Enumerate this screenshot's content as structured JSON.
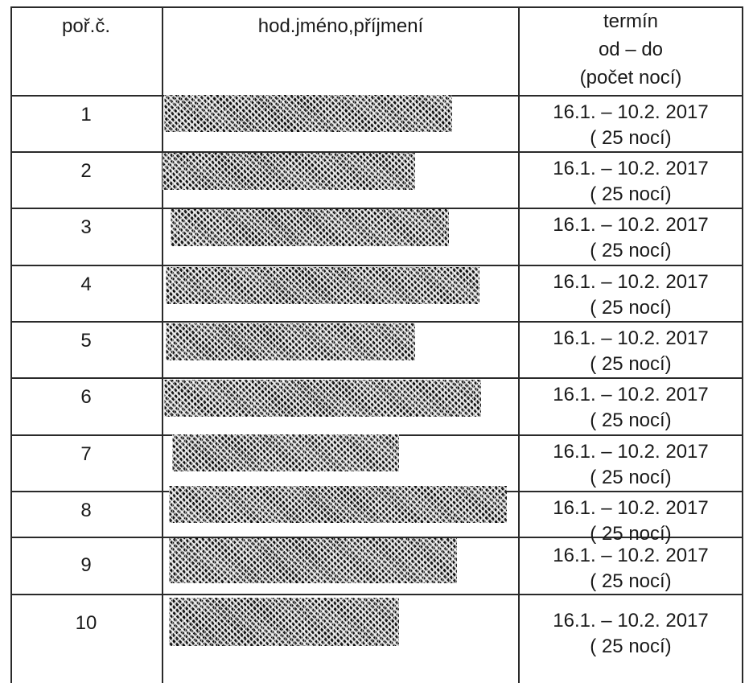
{
  "table": {
    "headers": {
      "col1": "poř.č.",
      "col2": "hod.jméno,příjmení",
      "col3_line1": "termín",
      "col3_line2": "od – do",
      "col3_line3": "(počet nocí)"
    },
    "rows": [
      {
        "num": "1",
        "term": "16.1. – 10.2. 2017",
        "nights": "( 25 nocí)"
      },
      {
        "num": "2",
        "term": "16.1. – 10.2. 2017",
        "nights": "( 25 nocí)"
      },
      {
        "num": "3",
        "term": "16.1. – 10.2. 2017",
        "nights": "( 25 nocí)"
      },
      {
        "num": "4",
        "term": "16.1. – 10.2. 2017",
        "nights": "( 25 nocí)"
      },
      {
        "num": "5",
        "term": "16.1. – 10.2. 2017",
        "nights": "( 25 nocí)"
      },
      {
        "num": "6",
        "term": "16.1. – 10.2. 2017",
        "nights": "( 25 nocí)"
      },
      {
        "num": "7",
        "term": "16.1. – 10.2. 2017",
        "nights": "( 25 nocí)"
      },
      {
        "num": "8",
        "term": "16.1. – 10.2. 2017",
        "nights": "( 25 nocí)"
      },
      {
        "num": "9",
        "term": "16.1. – 10.2. 2017",
        "nights": "( 25 nocí)"
      },
      {
        "num": "10",
        "term": "16.1. – 10.2. 2017",
        "nights": "( 25 nocí)"
      }
    ]
  }
}
